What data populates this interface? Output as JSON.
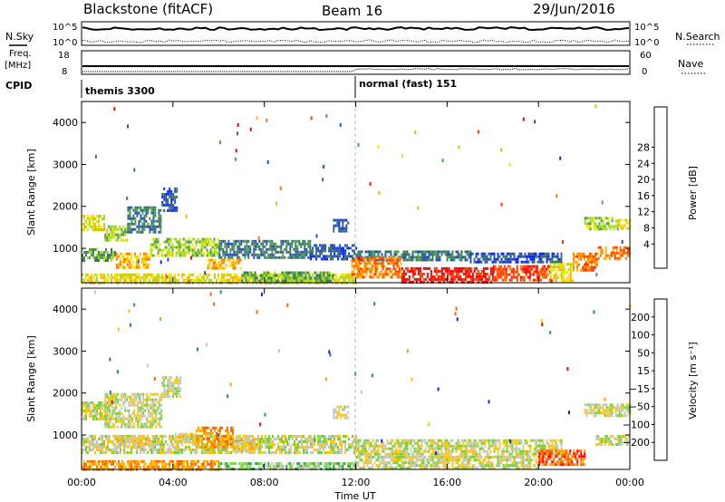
{
  "header": {
    "station": "Blackstone (fitACF)",
    "beam": "Beam 16",
    "date": "29/Jun/2016"
  },
  "side_labels": {
    "nsky": "N.Sky",
    "freq": "Freq.",
    "freq_unit": "[MHz]",
    "cpid": "CPID",
    "nsearch": "N.Search",
    "nave": "Nave"
  },
  "summary_axes": {
    "nsky_ticks": [
      "10^5",
      "10^0"
    ],
    "nsearch_ticks": [
      "10^5",
      "10^0"
    ],
    "freq_ticks": [
      "18",
      "8"
    ],
    "nave_ticks": [
      "60",
      "0"
    ]
  },
  "cpid_labels": [
    {
      "text": "themis 3300",
      "start_hour": 0
    },
    {
      "text": "normal (fast) 151",
      "start_hour": 12
    }
  ],
  "chart_data": [
    {
      "type": "heatmap",
      "name": "power",
      "ylabel": "Slant Range [km]",
      "xlabel": "",
      "xlim": [
        0,
        24
      ],
      "ylim": [
        180,
        4500
      ],
      "yticks": [
        "1000",
        "2000",
        "3000",
        "4000"
      ],
      "ytick_values": [
        1000,
        2000,
        3000,
        4000
      ],
      "colorbar": {
        "label": "Power [dB]",
        "ticks": [
          "4",
          "8",
          "12",
          "16",
          "20",
          "24",
          "28"
        ],
        "colors": [
          "#0a28f0",
          "#2850b4",
          "#3c7864",
          "#50a050",
          "#aadc1e",
          "#f0e600",
          "#ffb400",
          "#ff7800",
          "#ff3c00",
          "#ff0000"
        ]
      },
      "echo_bands": [
        {
          "t0": 0.0,
          "t1": 1.0,
          "r0": 1450,
          "r1": 1800,
          "level": 5
        },
        {
          "t0": 1.0,
          "t1": 2.0,
          "r0": 1200,
          "r1": 1550,
          "level": 4
        },
        {
          "t0": 2.0,
          "t1": 3.5,
          "r0": 1400,
          "r1": 2000,
          "level": 2
        },
        {
          "t0": 3.5,
          "t1": 4.2,
          "r0": 1900,
          "r1": 2450,
          "level": 1
        },
        {
          "t0": 0.0,
          "t1": 1.5,
          "r0": 700,
          "r1": 1000,
          "level": 3
        },
        {
          "t0": 1.5,
          "t1": 3.0,
          "r0": 550,
          "r1": 900,
          "level": 6
        },
        {
          "t0": 3.0,
          "t1": 6.0,
          "r0": 800,
          "r1": 1250,
          "level": 4
        },
        {
          "t0": 6.0,
          "t1": 10.0,
          "r0": 800,
          "r1": 1200,
          "level": 2
        },
        {
          "t0": 10.0,
          "t1": 12.0,
          "r0": 750,
          "r1": 1100,
          "level": 1
        },
        {
          "t0": 12.0,
          "t1": 17.0,
          "r0": 700,
          "r1": 950,
          "level": 2
        },
        {
          "t0": 17.0,
          "t1": 21.0,
          "r0": 650,
          "r1": 900,
          "level": 1
        },
        {
          "t0": 0.0,
          "t1": 12.0,
          "r0": 180,
          "r1": 400,
          "level": 5
        },
        {
          "t0": 11.8,
          "t1": 14.0,
          "r0": 300,
          "r1": 800,
          "level": 7
        },
        {
          "t0": 14.0,
          "t1": 18.0,
          "r0": 200,
          "r1": 550,
          "level": 9
        },
        {
          "t0": 18.0,
          "t1": 20.5,
          "r0": 220,
          "r1": 600,
          "level": 8
        },
        {
          "t0": 20.5,
          "t1": 21.5,
          "r0": 250,
          "r1": 650,
          "level": 5
        },
        {
          "t0": 21.5,
          "t1": 22.6,
          "r0": 500,
          "r1": 900,
          "level": 7
        },
        {
          "t0": 22.6,
          "t1": 24.0,
          "r0": 750,
          "r1": 1050,
          "level": 7
        },
        {
          "t0": 22.0,
          "t1": 23.5,
          "r0": 1450,
          "r1": 1750,
          "level": 4
        },
        {
          "t0": 23.5,
          "t1": 24.0,
          "r0": 1450,
          "r1": 1700,
          "level": 5
        },
        {
          "t0": 5.5,
          "t1": 7.0,
          "r0": 500,
          "r1": 750,
          "level": 6
        },
        {
          "t0": 7.0,
          "t1": 11.0,
          "r0": 250,
          "r1": 450,
          "level": 3
        },
        {
          "t0": 11.0,
          "t1": 11.7,
          "r0": 1400,
          "r1": 1700,
          "level": 1
        }
      ]
    },
    {
      "type": "heatmap",
      "name": "velocity",
      "ylabel": "Slant Range [km]",
      "xlabel": "Time UT",
      "xlim": [
        0,
        24
      ],
      "ylim": [
        180,
        4500
      ],
      "xticks": [
        "00:00",
        "04:00",
        "08:00",
        "12:00",
        "16:00",
        "20:00",
        "00:00"
      ],
      "xtick_values": [
        0,
        4,
        8,
        12,
        16,
        20,
        24
      ],
      "yticks": [
        "1000",
        "2000",
        "3000",
        "4000"
      ],
      "ytick_values": [
        1000,
        2000,
        3000,
        4000
      ],
      "colorbar": {
        "label": "Velocity [m s⁻¹]",
        "ticks": [
          "200",
          "100",
          "50",
          "15",
          "−15",
          "−50",
          "−100",
          "−200"
        ],
        "colors": [
          "#1428c8",
          "#2878b4",
          "#28a050",
          "#78d23c",
          "#c8c8c0",
          "#ffc800",
          "#ffa000",
          "#ff6400",
          "#ff0000"
        ]
      },
      "echo_bands": [
        {
          "t0": 0.0,
          "t1": 1.2,
          "r0": 1400,
          "r1": 1800,
          "level": 4
        },
        {
          "t0": 1.0,
          "t1": 3.5,
          "r0": 1200,
          "r1": 2000,
          "level": 4
        },
        {
          "t0": 3.5,
          "t1": 4.3,
          "r0": 1900,
          "r1": 2400,
          "level": 4
        },
        {
          "t0": 0.0,
          "t1": 12.0,
          "r0": 550,
          "r1": 1000,
          "level": 4
        },
        {
          "t0": 12.0,
          "t1": 21.0,
          "r0": 500,
          "r1": 900,
          "level": 4
        },
        {
          "t0": 5.0,
          "t1": 6.6,
          "r0": 700,
          "r1": 1200,
          "level": 6
        },
        {
          "t0": 4.0,
          "t1": 5.0,
          "r0": 800,
          "r1": 1050,
          "level": 5
        },
        {
          "t0": 6.6,
          "t1": 7.5,
          "r0": 600,
          "r1": 900,
          "level": 5
        },
        {
          "t0": 0.0,
          "t1": 6.0,
          "r0": 200,
          "r1": 400,
          "level": 6
        },
        {
          "t0": 6.0,
          "t1": 12.0,
          "r0": 180,
          "r1": 350,
          "level": 3
        },
        {
          "t0": 12.0,
          "t1": 20.0,
          "r0": 200,
          "r1": 500,
          "level": 4
        },
        {
          "t0": 20.0,
          "t1": 22.0,
          "r0": 300,
          "r1": 650,
          "level": 7
        },
        {
          "t0": 22.0,
          "t1": 24.0,
          "r0": 1450,
          "r1": 1750,
          "level": 4
        },
        {
          "t0": 22.5,
          "t1": 24.0,
          "r0": 750,
          "r1": 1000,
          "level": 4
        },
        {
          "t0": 11.0,
          "t1": 11.7,
          "r0": 1400,
          "r1": 1700,
          "level": 4
        },
        {
          "t0": 1.5,
          "t1": 3.0,
          "r0": 700,
          "r1": 950,
          "level": 5
        }
      ]
    }
  ]
}
